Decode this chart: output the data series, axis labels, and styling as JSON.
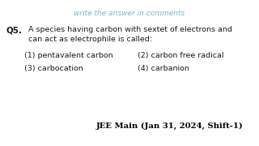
{
  "bg_color": "#ffffff",
  "top_text": "write the answer in comments",
  "top_text_color": "#7ab8cc",
  "q_number": "Q5.",
  "question_line1": "A species having carbon with sextet of electrons and",
  "question_line2": "can act as electrophile is called:",
  "question_color": "#1a1a1a",
  "option1": "(1) pentavalent carbon",
  "option2": "(2) carbon free radical",
  "option3": "(3) carbocation",
  "option4": "(4) carbanion",
  "options_color": "#1a1a1a",
  "footer": "JEE Main (Jan 31, 2024, Shift-1)",
  "footer_color": "#000000",
  "fig_width": 3.2,
  "fig_height": 1.8,
  "dpi": 100
}
